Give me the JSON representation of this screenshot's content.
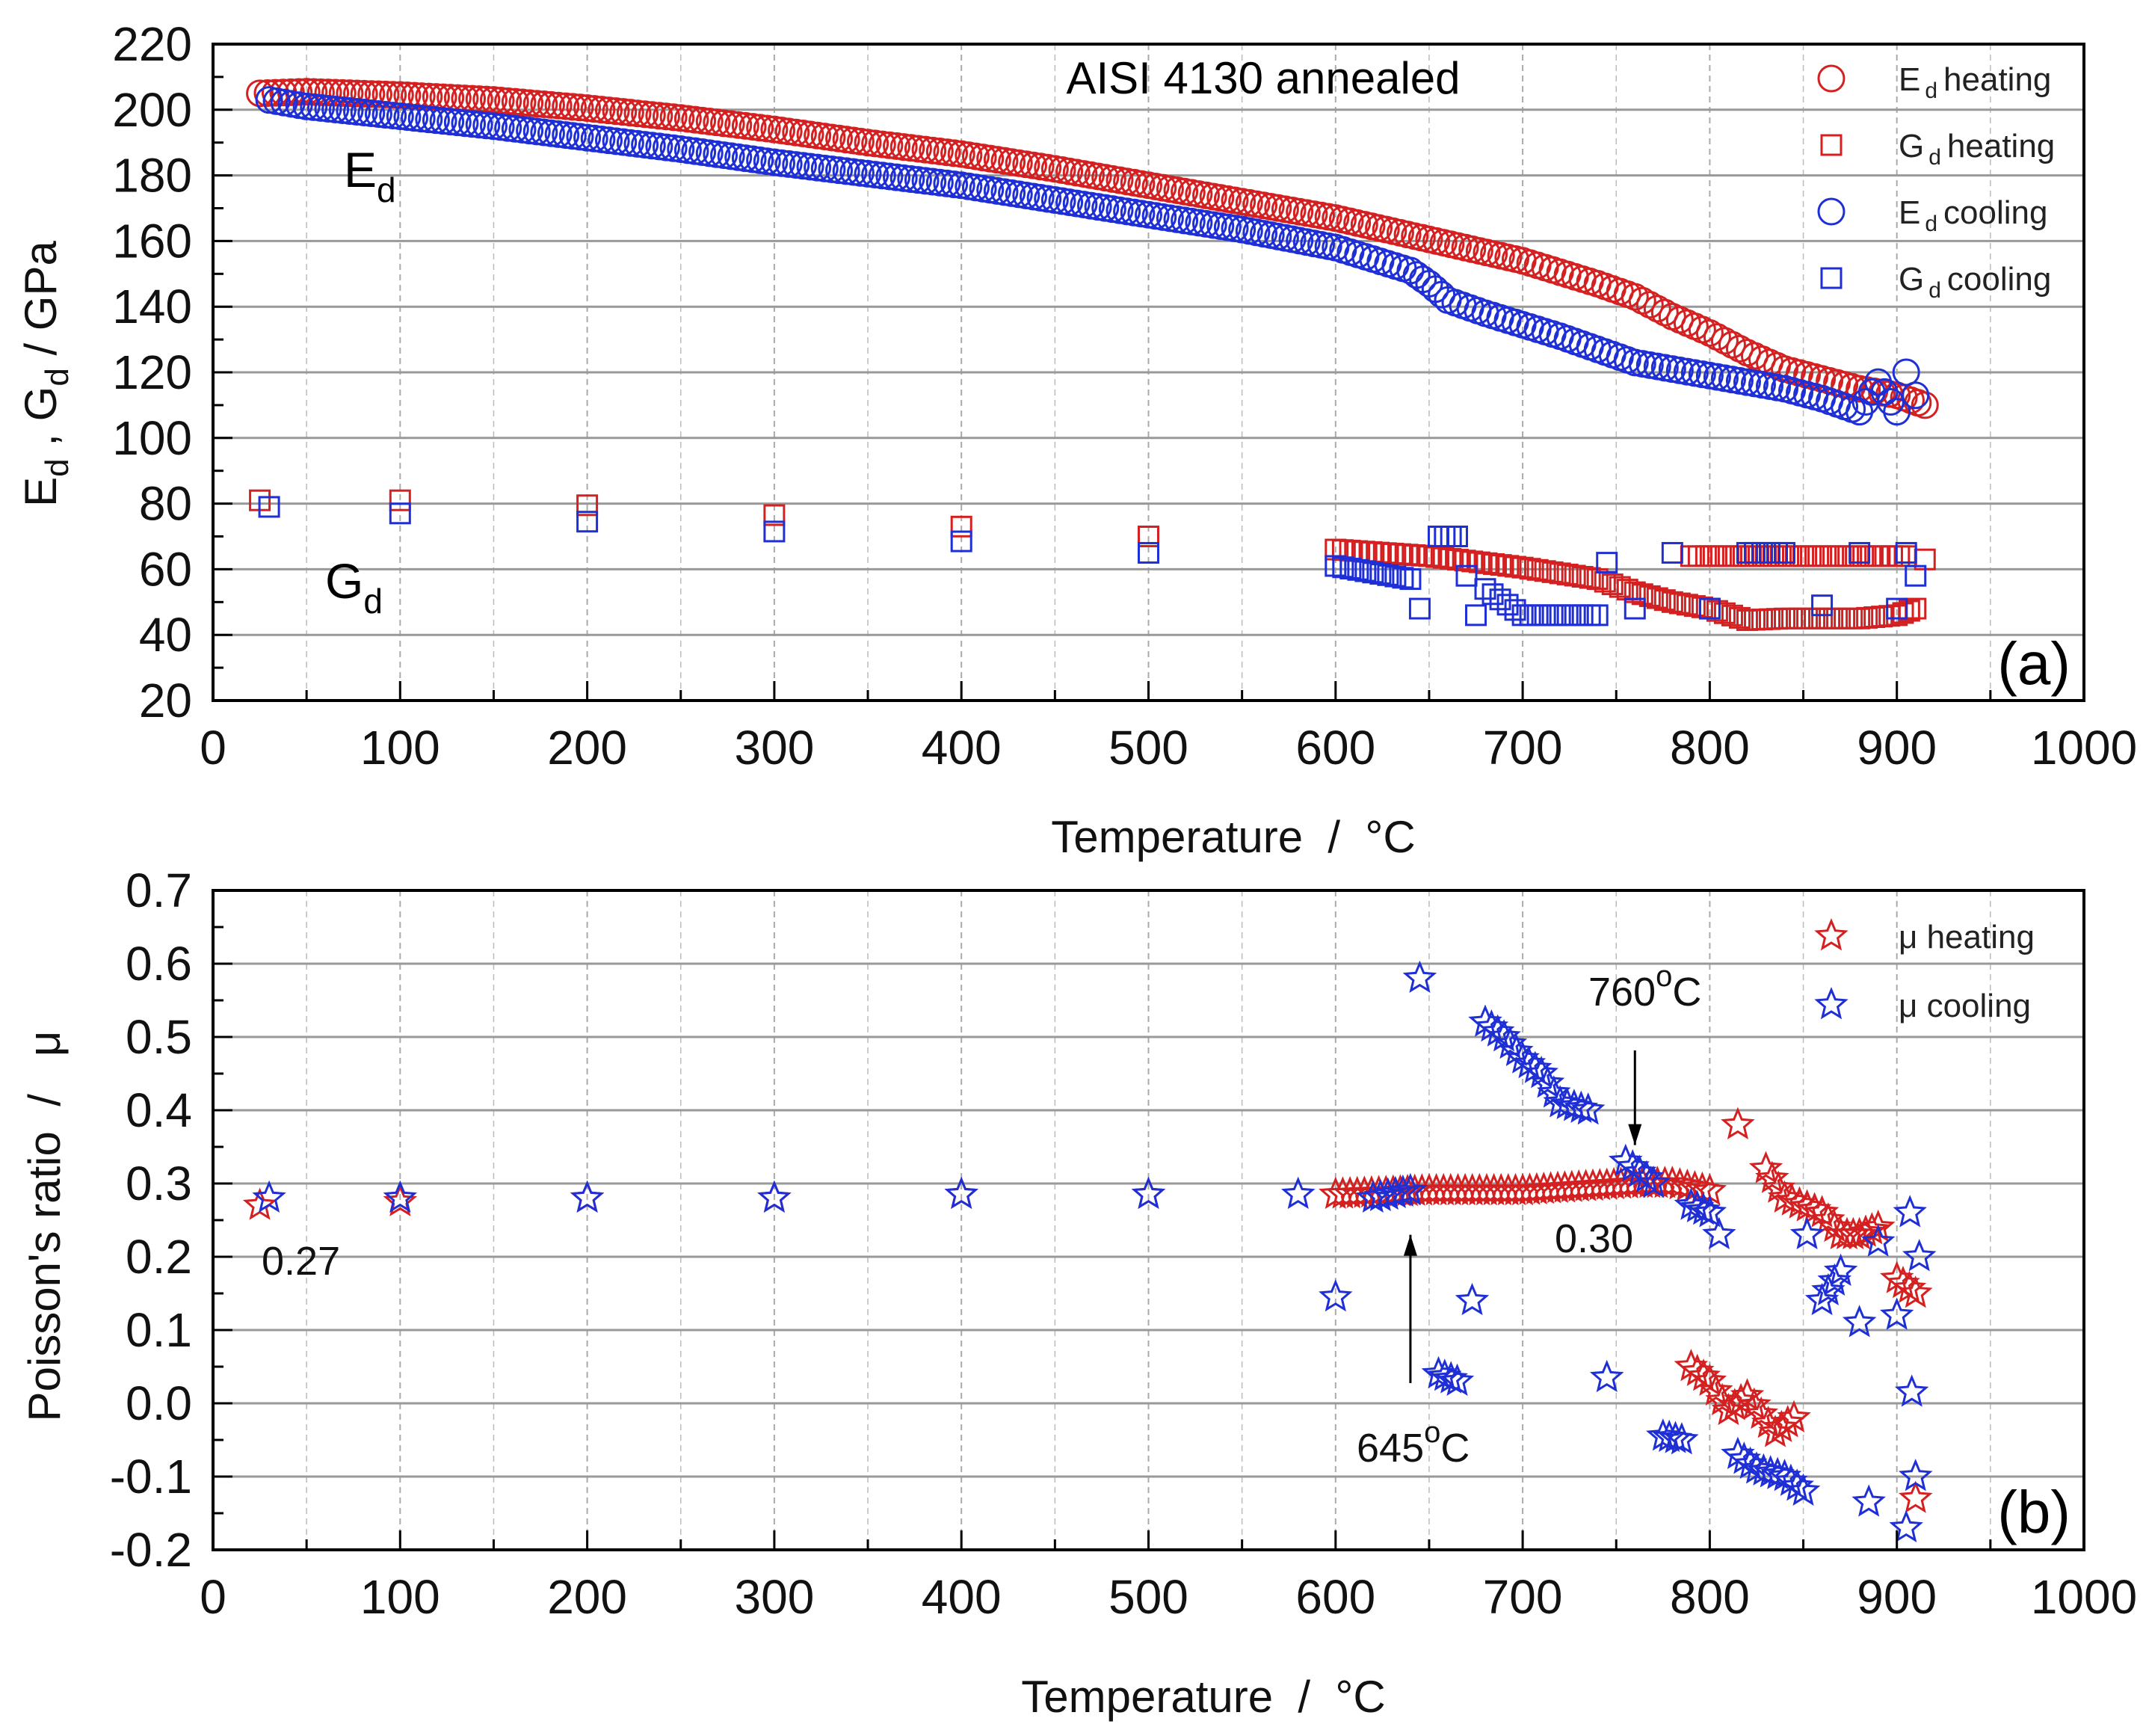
{
  "chart_data": [
    {
      "type": "scatter",
      "panel_label": "(a)",
      "title": "AISI 4130 annealed",
      "xlabel": "Temperature  /  °C",
      "xlabel_main": "Temperature  /  ",
      "xlabel_unit_sup": "o",
      "xlabel_unit": "C",
      "ylabel": "Ed , Gd / GPa",
      "ylabel_parts": [
        "E",
        "d",
        " , G",
        "d",
        " / GPa"
      ],
      "xlim": [
        0,
        1000
      ],
      "ylim": [
        20,
        220
      ],
      "xticks": [
        0,
        100,
        200,
        300,
        400,
        500,
        600,
        700,
        800,
        900,
        1000
      ],
      "yticks": [
        20,
        40,
        60,
        80,
        100,
        120,
        140,
        160,
        180,
        200,
        220
      ],
      "grid": true,
      "legend_placement": "top-right",
      "curve_labels": [
        {
          "text": "E",
          "sub": "d"
        },
        {
          "text": "G",
          "sub": "d"
        }
      ],
      "series": [
        {
          "name": "E d heating",
          "base": "E",
          "sub": "d",
          "rest": "heating",
          "marker": "circle",
          "color": "#d42020",
          "x": [
            25,
            50,
            100,
            150,
            200,
            250,
            300,
            350,
            400,
            450,
            500,
            550,
            600,
            650,
            700,
            740,
            760,
            780,
            800,
            820,
            840,
            860,
            880,
            900,
            915
          ],
          "y": [
            205,
            205.5,
            204.5,
            203,
            200.5,
            197.5,
            194,
            190,
            186.5,
            182,
            177,
            172,
            167,
            160.5,
            154,
            147,
            143,
            137,
            132,
            126,
            121,
            118,
            115,
            113,
            110
          ]
        },
        {
          "name": "G d heating",
          "base": "G",
          "sub": "d",
          "rest": "heating",
          "marker": "square",
          "color": "#d42020",
          "x": [
            25,
            100,
            200,
            300,
            400,
            500,
            600,
            650,
            700,
            740,
            760,
            780,
            800,
            820,
            840,
            860,
            880,
            900,
            910,
            915,
            790,
            810,
            830,
            850,
            870,
            890,
            905
          ],
          "y": [
            81,
            81,
            79.5,
            76.5,
            73,
            70,
            66,
            64,
            60.5,
            57,
            53,
            50,
            48,
            44.5,
            45,
            45,
            45,
            46,
            48,
            63,
            64,
            64,
            64,
            64,
            64,
            64,
            64
          ]
        },
        {
          "name": "E d cooling",
          "base": "E",
          "sub": "d",
          "rest": "cooling",
          "marker": "circle",
          "color": "#1f2fd6",
          "x": [
            30,
            50,
            100,
            150,
            200,
            250,
            300,
            350,
            400,
            450,
            500,
            550,
            600,
            640,
            650,
            660,
            680,
            700,
            720,
            740,
            760,
            780,
            800,
            820,
            840,
            860,
            880,
            890,
            900,
            905,
            910
          ],
          "y": [
            203,
            201,
            198,
            195,
            191.5,
            188,
            184,
            180.5,
            177,
            172.5,
            168,
            163.5,
            158,
            151,
            147,
            142,
            138,
            134.5,
            131,
            127,
            123,
            121,
            119,
            117,
            115,
            112,
            108,
            117,
            108,
            120,
            113
          ]
        },
        {
          "name": "G d cooling",
          "base": "G",
          "sub": "d",
          "rest": "cooling",
          "marker": "square",
          "color": "#1f2fd6",
          "x": [
            30,
            100,
            200,
            300,
            400,
            500,
            600,
            640,
            645,
            655,
            665,
            670,
            675,
            680,
            700,
            720,
            740,
            745,
            760,
            780,
            800,
            820,
            840,
            860,
            880,
            900,
            905,
            910
          ],
          "y": [
            79,
            77,
            74.5,
            71.5,
            68.5,
            65,
            61,
            57,
            48,
            70,
            70,
            58,
            46,
            54,
            46,
            46,
            46,
            62,
            48,
            65,
            48,
            65,
            65,
            49,
            65,
            48,
            65,
            58
          ]
        }
      ]
    },
    {
      "type": "scatter",
      "panel_label": "(b)",
      "xlabel": "Temperature  /  °C",
      "xlabel_main": "Temperature  /  ",
      "xlabel_unit_sup": "o",
      "xlabel_unit": "C",
      "ylabel": "Poisson's ratio  /   μ",
      "xlim": [
        0,
        1000
      ],
      "ylim": [
        -0.2,
        0.7
      ],
      "xticks": [
        0,
        100,
        200,
        300,
        400,
        500,
        600,
        700,
        800,
        900,
        1000
      ],
      "yticks": [
        -0.2,
        -0.1,
        0.0,
        0.1,
        0.2,
        0.3,
        0.4,
        0.5,
        0.6,
        0.7
      ],
      "ytick_labels": [
        "-0.2",
        "-0.1",
        "0.0",
        "0.1",
        "0.2",
        "0.3",
        "0.4",
        "0.5",
        "0.6",
        "0.7"
      ],
      "grid": true,
      "legend_placement": "top-right",
      "annotations": [
        {
          "text": "0.27",
          "x": 25,
          "y": 0.27
        },
        {
          "text": "0.30",
          "x": 760,
          "y": 0.3
        },
        {
          "text": "760",
          "sup": "o",
          "unit": "C",
          "arrow_to_x": 760,
          "arrow_to_y": 0.33
        },
        {
          "text": "645",
          "sup": "o",
          "unit": "C",
          "arrow_to_x": 640,
          "arrow_to_y": 0.23
        }
      ],
      "series": [
        {
          "name": "μ  heating",
          "marker": "star",
          "color": "#d42020",
          "x": [
            25,
            100,
            200,
            300,
            400,
            500,
            600,
            650,
            700,
            730,
            760,
            780,
            800,
            815,
            830,
            840,
            860,
            870,
            880,
            890,
            900,
            910,
            790,
            800,
            810,
            820,
            835,
            845,
            910
          ],
          "y": [
            0.27,
            0.275,
            0.28,
            0.28,
            0.285,
            0.285,
            0.285,
            0.29,
            0.29,
            0.295,
            0.3,
            0.3,
            0.29,
            0.38,
            0.32,
            0.28,
            0.26,
            0.23,
            0.23,
            0.24,
            0.17,
            0.15,
            0.05,
            0.03,
            -0.01,
            0.01,
            -0.04,
            -0.02,
            -0.13
          ]
        },
        {
          "name": "μ  cooling",
          "marker": "star",
          "color": "#1f2fd6",
          "x": [
            30,
            100,
            200,
            300,
            400,
            500,
            580,
            600,
            620,
            640,
            645,
            655,
            665,
            673,
            680,
            690,
            700,
            710,
            720,
            735,
            745,
            755,
            770,
            775,
            785,
            790,
            800,
            805,
            815,
            825,
            840,
            850,
            852,
            860,
            870,
            880,
            885,
            890,
            900,
            905,
            907,
            908,
            910,
            912
          ],
          "y": [
            0.28,
            0.28,
            0.28,
            0.28,
            0.285,
            0.285,
            0.285,
            0.145,
            0.28,
            0.29,
            0.58,
            0.04,
            0.03,
            0.14,
            0.52,
            0.5,
            0.47,
            0.45,
            0.41,
            0.4,
            0.035,
            0.33,
            0.3,
            -0.045,
            -0.05,
            0.27,
            0.26,
            0.23,
            -0.07,
            -0.09,
            -0.1,
            -0.12,
            0.23,
            0.14,
            0.18,
            0.11,
            -0.135,
            0.22,
            0.12,
            -0.17,
            0.26,
            0.015,
            -0.1,
            0.2
          ]
        }
      ]
    }
  ]
}
